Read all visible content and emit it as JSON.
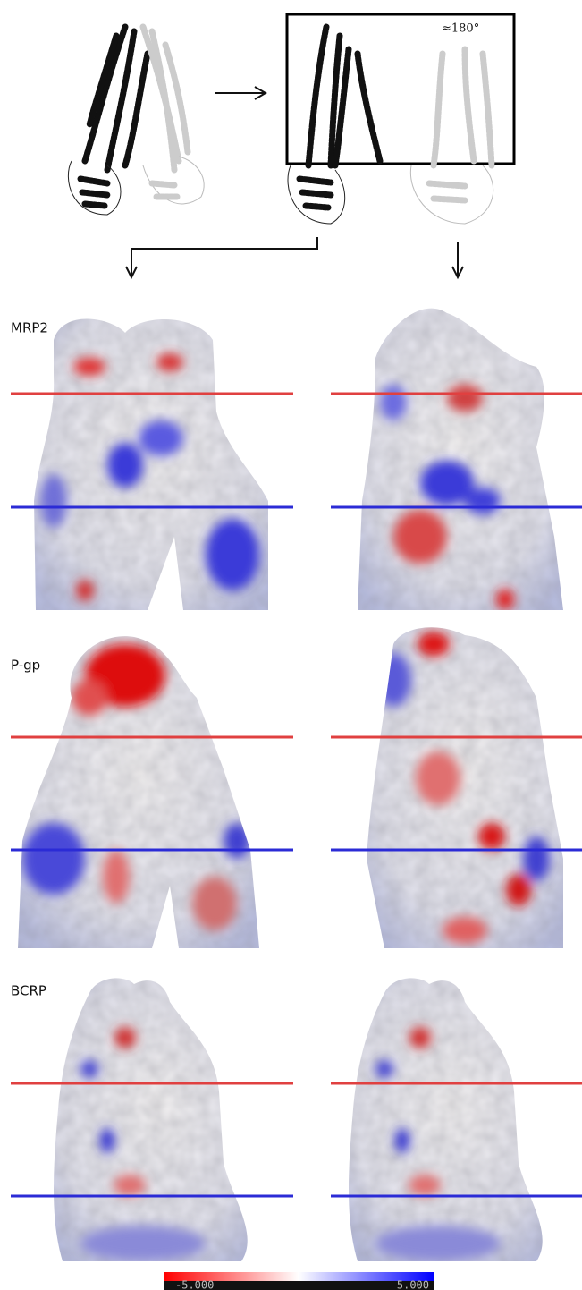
{
  "figure": {
    "rotation_label": "≈180°",
    "panels": [
      {
        "label": "MRP2"
      },
      {
        "label": "P-gp"
      },
      {
        "label": "BCRP"
      }
    ],
    "colorbar": {
      "min_label": "-5.000",
      "max_label": "5.000"
    }
  }
}
